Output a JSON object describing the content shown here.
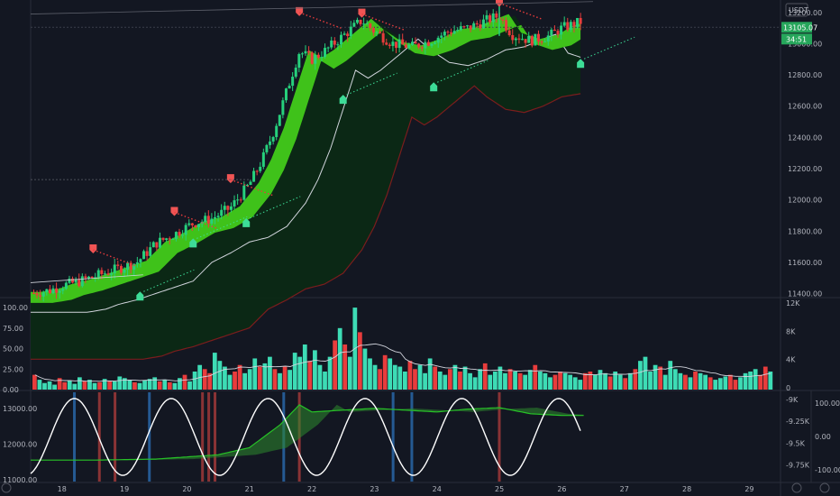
{
  "chart_data": [
    {
      "type": "candlestick",
      "currency": "USDT",
      "last_price_label": "13105.07",
      "countdown": "34:51",
      "y_ticks": [
        "13200.00",
        "13000.00",
        "12800.00",
        "12600.00",
        "12400.00",
        "12200.00",
        "12000.00",
        "11800.00",
        "11600.00",
        "11400.00"
      ],
      "y_tick_values": [
        13200,
        13000,
        12800,
        12600,
        12400,
        12200,
        12000,
        11800,
        11600,
        11400
      ],
      "ylim": [
        11380,
        13280
      ],
      "x_ticks": [
        "18",
        "19",
        "20",
        "21",
        "22",
        "23",
        "24",
        "25",
        "26",
        "27",
        "28",
        "29"
      ],
      "x_tick_values": [
        18,
        19,
        20,
        21,
        22,
        23,
        24,
        25,
        26,
        27,
        28,
        29
      ],
      "xlim": [
        17.5,
        29.5
      ],
      "series": [
        {
          "x": [
            17.5,
            17.8,
            18.0,
            18.3,
            18.6,
            18.9,
            19.2,
            19.5,
            19.8,
            20.1,
            20.4,
            20.7,
            21.0,
            21.2,
            21.4,
            21.6,
            21.8,
            22.0,
            22.2,
            22.5,
            22.8,
            23.0,
            23.3,
            23.6,
            23.9,
            24.2,
            24.5,
            24.8,
            25.0,
            25.2,
            25.5,
            25.8,
            26.0,
            26.3
          ],
          "y": [
            11400,
            11420,
            11450,
            11480,
            11520,
            11560,
            11600,
            11720,
            11780,
            11850,
            11880,
            11950,
            12100,
            12250,
            12450,
            12700,
            12950,
            12900,
            12950,
            13050,
            13150,
            13080,
            13000,
            12980,
            13020,
            13080,
            13100,
            13150,
            13180,
            13060,
            13020,
            13050,
            13100,
            13140
          ]
        }
      ]
    },
    {
      "type": "bar",
      "y_ticks": [
        "100.00",
        "75.00",
        "50.00",
        "25.00",
        "0.00"
      ],
      "y_tick_values": [
        100,
        75,
        50,
        25,
        0
      ],
      "ylim": [
        0,
        110
      ],
      "right_ticks": [
        "12K",
        "8K",
        "4K",
        "0"
      ],
      "series": [
        {
          "values": [
            18,
            12,
            8,
            10,
            6,
            14,
            9,
            11,
            7,
            15,
            10,
            12,
            8,
            9,
            13,
            11,
            10,
            16,
            14,
            12,
            9,
            8,
            11,
            13,
            15,
            10,
            12,
            9,
            8,
            14,
            18,
            10,
            22,
            30,
            25,
            20,
            45,
            35,
            28,
            18,
            22,
            30,
            20,
            25,
            38,
            28,
            32,
            40,
            25,
            20,
            28,
            24,
            45,
            40,
            55,
            35,
            48,
            30,
            22,
            40,
            60,
            75,
            55,
            40,
            100,
            70,
            50,
            38,
            30,
            25,
            42,
            38,
            30,
            28,
            22,
            35,
            25,
            30,
            20,
            38,
            28,
            22,
            18,
            25,
            30,
            22,
            28,
            20,
            15,
            25,
            32,
            18,
            22,
            28,
            20,
            25,
            22,
            20,
            18,
            24,
            30,
            22,
            20,
            15,
            18,
            22,
            20,
            18,
            15,
            12,
            20,
            22,
            18,
            24,
            20,
            16,
            22,
            18,
            14,
            20,
            25,
            35,
            40,
            22,
            30,
            28,
            18,
            35,
            25,
            20,
            18,
            15,
            22,
            20,
            18,
            15,
            12,
            14,
            16,
            18,
            12,
            15,
            20,
            22,
            25,
            18,
            28,
            22
          ]
        }
      ]
    },
    {
      "type": "line",
      "y_ticks": [
        "13000.00",
        "12000.00",
        "11000.00"
      ],
      "y_tick_values": [
        13000,
        12000,
        11000
      ],
      "ylim": [
        10950,
        13450
      ],
      "right_ticks_inner": [
        "-9K",
        "-9.25K",
        "-9.5K",
        "-9.75K"
      ],
      "right_ticks_outer": [
        "100.00",
        "0.00",
        "-100.00"
      ],
      "series": [
        {
          "x": [
            17.5,
            18.5,
            19.5,
            20.5,
            21.0,
            21.5,
            21.8,
            22.0,
            22.5,
            23.0,
            23.5,
            24.0,
            24.5,
            25.0,
            25.5,
            26.0,
            26.4
          ],
          "y": [
            11550,
            11550,
            11580,
            11700,
            11900,
            12550,
            13100,
            12900,
            12950,
            13000,
            12950,
            12900,
            12980,
            13020,
            12850,
            12800,
            12800
          ]
        }
      ]
    }
  ]
}
